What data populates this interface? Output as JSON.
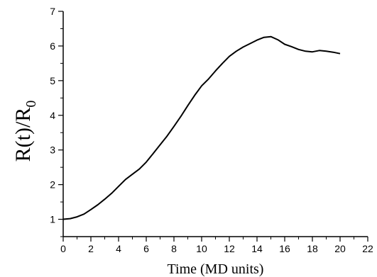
{
  "chart_data": {
    "type": "line",
    "title": "",
    "xlabel": "Time (MD units)",
    "ylabel": {
      "main": "R(t)/R",
      "subscript": "0"
    },
    "xlim": [
      0,
      22
    ],
    "ylim": [
      0.5,
      7
    ],
    "xticks": [
      0,
      2,
      4,
      6,
      8,
      10,
      12,
      14,
      16,
      18,
      20,
      22
    ],
    "yticks": [
      1,
      2,
      3,
      4,
      5,
      6,
      7
    ],
    "grid": false,
    "legend": "none",
    "line_color": "#000000",
    "series": [
      {
        "x": [
          0,
          0.5,
          1.0,
          1.5,
          2.0,
          2.5,
          3.0,
          3.5,
          4.0,
          4.5,
          5.0,
          5.5,
          6.0,
          6.5,
          7.0,
          7.5,
          8.0,
          8.5,
          9.0,
          9.5,
          10.0,
          10.5,
          11.0,
          11.5,
          12.0,
          12.5,
          13.0,
          13.5,
          14.0,
          14.5,
          15.0,
          15.5,
          16.0,
          16.5,
          17.0,
          17.5,
          18.0,
          18.5,
          19.0,
          19.5,
          20.0
        ],
        "y": [
          1.0,
          1.02,
          1.07,
          1.15,
          1.28,
          1.42,
          1.58,
          1.75,
          1.95,
          2.15,
          2.3,
          2.45,
          2.65,
          2.9,
          3.15,
          3.4,
          3.68,
          3.97,
          4.28,
          4.58,
          4.85,
          5.05,
          5.28,
          5.5,
          5.7,
          5.85,
          5.97,
          6.07,
          6.17,
          6.25,
          6.27,
          6.18,
          6.05,
          5.98,
          5.9,
          5.85,
          5.83,
          5.87,
          5.85,
          5.82,
          5.78
        ]
      }
    ]
  }
}
